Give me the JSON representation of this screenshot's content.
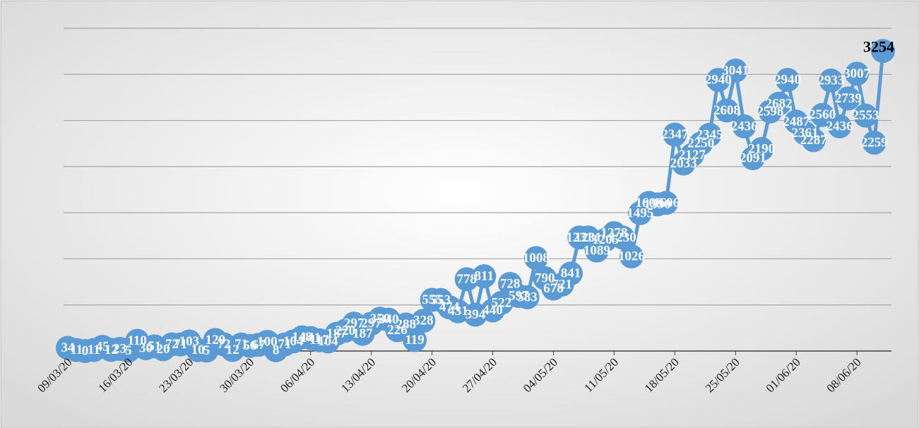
{
  "chart_data": {
    "type": "line",
    "categories": [
      "09/03/20",
      null,
      null,
      null,
      null,
      null,
      null,
      "16/03/20",
      null,
      null,
      null,
      null,
      null,
      null,
      "23/03/20",
      null,
      null,
      null,
      null,
      null,
      null,
      "30/03/20",
      null,
      null,
      null,
      null,
      null,
      null,
      "06/04/20",
      null,
      null,
      null,
      null,
      null,
      null,
      "13/04/20",
      null,
      null,
      null,
      null,
      null,
      null,
      "20/04/20",
      null,
      null,
      null,
      null,
      null,
      null,
      "27/04/20",
      null,
      null,
      null,
      null,
      null,
      null,
      "04/05/20",
      null,
      null,
      null,
      null,
      null,
      null,
      "11/05/20",
      null,
      null,
      null,
      null,
      null,
      null,
      "18/05/20",
      null,
      null,
      null,
      null,
      null,
      null,
      "25/05/20",
      null,
      null,
      null,
      null,
      null,
      null,
      "01/06/20",
      null,
      null,
      null,
      null,
      null,
      null,
      "08/06/20",
      null,
      null,
      null
    ],
    "series": [
      {
        "color": "#5b9bd5",
        "values": [
          34,
          11,
          0,
          11,
          45,
          12,
          23,
          5,
          110,
          30,
          51,
          20,
          72,
          71,
          103,
          10,
          5,
          120,
          72,
          12,
          71,
          56,
          67,
          100,
          8,
          71,
          104,
          148,
          141,
          117,
          104,
          187,
          220,
          297,
          187,
          297,
          350,
          340,
          226,
          288,
          119,
          328,
          555,
          553,
          474,
          431,
          778,
          394,
          811,
          440,
          522,
          728,
          597,
          583,
          1008,
          790,
          678,
          721,
          841,
          1231,
          1231,
          1089,
          1205,
          1278,
          1230,
          1026,
          1495,
          1606,
          1590,
          1606,
          2347,
          2033,
          2127,
          2250,
          2345,
          2940,
          2608,
          3041,
          2436,
          2091,
          2190,
          2598,
          2682,
          2940,
          2487,
          2361,
          2287,
          2560,
          2933,
          2436,
          2739,
          3007,
          2553,
          2259,
          3254
        ]
      }
    ],
    "ylim": [
      0,
      3500
    ],
    "yticks": [
      500,
      1000,
      1500,
      2000,
      2500,
      3000,
      3500
    ],
    "grid": true
  }
}
